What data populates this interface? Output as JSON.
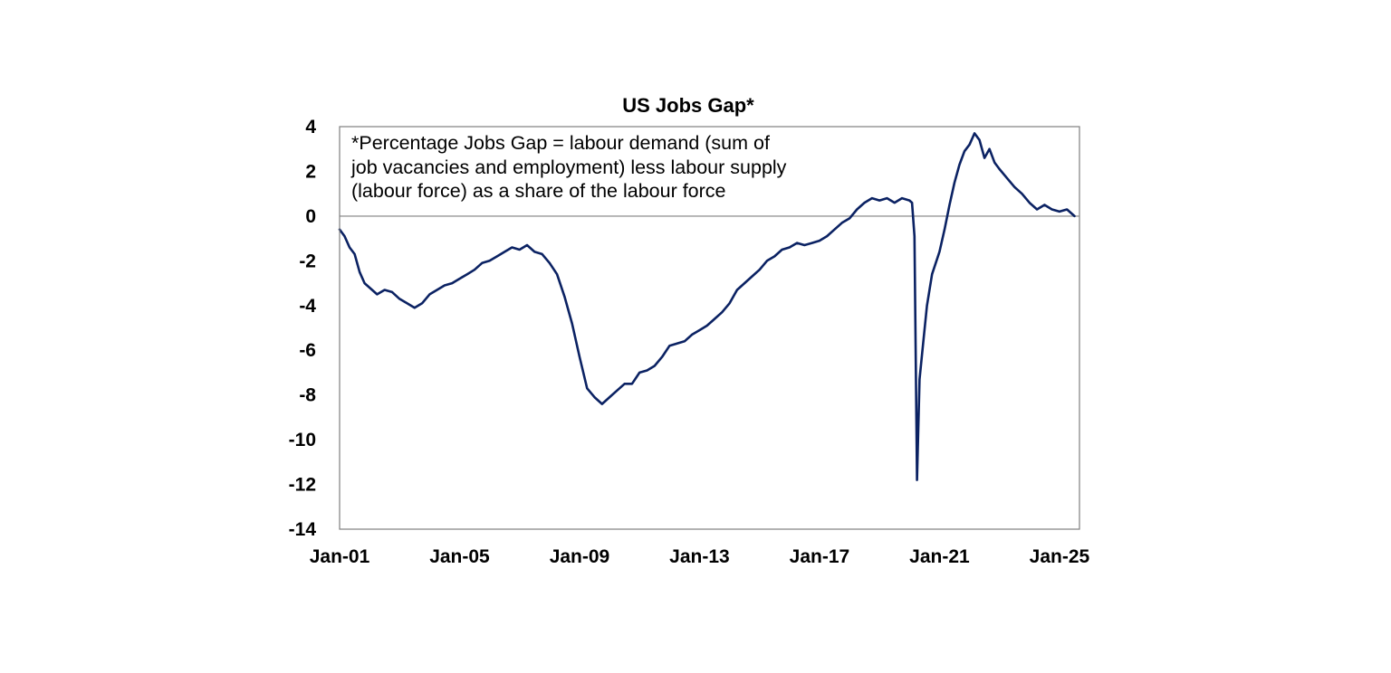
{
  "chart_data": {
    "type": "line",
    "title": "US Jobs Gap*",
    "annotation": [
      "*Percentage Jobs Gap = labour demand (sum of",
      "job vacancies and employment) less labour supply",
      "(labour force) as a share of the labour force"
    ],
    "xlabel": "",
    "ylabel": "",
    "ylim": [
      -14,
      4
    ],
    "yticks": [
      4,
      2,
      0,
      -2,
      -4,
      -6,
      -8,
      -10,
      -12,
      -14
    ],
    "ytick_labels": [
      "4",
      "2",
      "0",
      "-2",
      "-4",
      "-6",
      "-8",
      "-10",
      "-12",
      "-14"
    ],
    "xlim": [
      "2001-01",
      "2025-09"
    ],
    "xticks": [
      "2001-01",
      "2005-01",
      "2009-01",
      "2013-01",
      "2017-01",
      "2021-01",
      "2025-01"
    ],
    "xtick_labels": [
      "Jan-01",
      "Jan-05",
      "Jan-09",
      "Jan-13",
      "Jan-17",
      "Jan-21",
      "Jan-25"
    ],
    "grid": false,
    "zero_line": true,
    "colors": {
      "series": "#0b2263",
      "zero_line": "#a6a6a6",
      "axis": "#7f7f7f"
    },
    "series": [
      {
        "name": "",
        "points": [
          [
            "2001-01",
            -0.6
          ],
          [
            "2001-03",
            -0.9
          ],
          [
            "2001-05",
            -1.4
          ],
          [
            "2001-07",
            -1.7
          ],
          [
            "2001-09",
            -2.5
          ],
          [
            "2001-11",
            -3.0
          ],
          [
            "2002-01",
            -3.2
          ],
          [
            "2002-04",
            -3.5
          ],
          [
            "2002-07",
            -3.3
          ],
          [
            "2002-10",
            -3.4
          ],
          [
            "2003-01",
            -3.7
          ],
          [
            "2003-04",
            -3.9
          ],
          [
            "2003-07",
            -4.1
          ],
          [
            "2003-10",
            -3.9
          ],
          [
            "2004-01",
            -3.5
          ],
          [
            "2004-04",
            -3.3
          ],
          [
            "2004-07",
            -3.1
          ],
          [
            "2004-10",
            -3.0
          ],
          [
            "2005-01",
            -2.8
          ],
          [
            "2005-04",
            -2.6
          ],
          [
            "2005-07",
            -2.4
          ],
          [
            "2005-10",
            -2.1
          ],
          [
            "2006-01",
            -2.0
          ],
          [
            "2006-04",
            -1.8
          ],
          [
            "2006-07",
            -1.6
          ],
          [
            "2006-10",
            -1.4
          ],
          [
            "2007-01",
            -1.5
          ],
          [
            "2007-04",
            -1.3
          ],
          [
            "2007-07",
            -1.6
          ],
          [
            "2007-10",
            -1.7
          ],
          [
            "2008-01",
            -2.1
          ],
          [
            "2008-04",
            -2.6
          ],
          [
            "2008-07",
            -3.6
          ],
          [
            "2008-10",
            -4.8
          ],
          [
            "2009-01",
            -6.3
          ],
          [
            "2009-04",
            -7.7
          ],
          [
            "2009-07",
            -8.1
          ],
          [
            "2009-10",
            -8.4
          ],
          [
            "2010-01",
            -8.1
          ],
          [
            "2010-04",
            -7.8
          ],
          [
            "2010-07",
            -7.5
          ],
          [
            "2010-10",
            -7.5
          ],
          [
            "2011-01",
            -7.0
          ],
          [
            "2011-04",
            -6.9
          ],
          [
            "2011-07",
            -6.7
          ],
          [
            "2011-10",
            -6.3
          ],
          [
            "2012-01",
            -5.8
          ],
          [
            "2012-04",
            -5.7
          ],
          [
            "2012-07",
            -5.6
          ],
          [
            "2012-10",
            -5.3
          ],
          [
            "2013-01",
            -5.1
          ],
          [
            "2013-04",
            -4.9
          ],
          [
            "2013-07",
            -4.6
          ],
          [
            "2013-10",
            -4.3
          ],
          [
            "2014-01",
            -3.9
          ],
          [
            "2014-04",
            -3.3
          ],
          [
            "2014-07",
            -3.0
          ],
          [
            "2014-10",
            -2.7
          ],
          [
            "2015-01",
            -2.4
          ],
          [
            "2015-04",
            -2.0
          ],
          [
            "2015-07",
            -1.8
          ],
          [
            "2015-10",
            -1.5
          ],
          [
            "2016-01",
            -1.4
          ],
          [
            "2016-04",
            -1.2
          ],
          [
            "2016-07",
            -1.3
          ],
          [
            "2016-10",
            -1.2
          ],
          [
            "2017-01",
            -1.1
          ],
          [
            "2017-04",
            -0.9
          ],
          [
            "2017-07",
            -0.6
          ],
          [
            "2017-10",
            -0.3
          ],
          [
            "2018-01",
            -0.1
          ],
          [
            "2018-04",
            0.3
          ],
          [
            "2018-07",
            0.6
          ],
          [
            "2018-10",
            0.8
          ],
          [
            "2019-01",
            0.7
          ],
          [
            "2019-04",
            0.8
          ],
          [
            "2019-07",
            0.6
          ],
          [
            "2019-10",
            0.8
          ],
          [
            "2020-01",
            0.7
          ],
          [
            "2020-02",
            0.6
          ],
          [
            "2020-03",
            -0.9
          ],
          [
            "2020-04",
            -11.8
          ],
          [
            "2020-05",
            -7.3
          ],
          [
            "2020-06",
            -6.2
          ],
          [
            "2020-08",
            -4.0
          ],
          [
            "2020-10",
            -2.6
          ],
          [
            "2021-01",
            -1.6
          ],
          [
            "2021-03",
            -0.6
          ],
          [
            "2021-05",
            0.5
          ],
          [
            "2021-07",
            1.5
          ],
          [
            "2021-09",
            2.3
          ],
          [
            "2021-11",
            2.9
          ],
          [
            "2022-01",
            3.2
          ],
          [
            "2022-03",
            3.7
          ],
          [
            "2022-05",
            3.4
          ],
          [
            "2022-07",
            2.6
          ],
          [
            "2022-09",
            3.0
          ],
          [
            "2022-11",
            2.4
          ],
          [
            "2023-01",
            2.1
          ],
          [
            "2023-04",
            1.7
          ],
          [
            "2023-07",
            1.3
          ],
          [
            "2023-10",
            1.0
          ],
          [
            "2024-01",
            0.6
          ],
          [
            "2024-04",
            0.3
          ],
          [
            "2024-07",
            0.5
          ],
          [
            "2024-10",
            0.3
          ],
          [
            "2025-01",
            0.2
          ],
          [
            "2025-04",
            0.3
          ],
          [
            "2025-07",
            0.0
          ]
        ]
      }
    ]
  }
}
